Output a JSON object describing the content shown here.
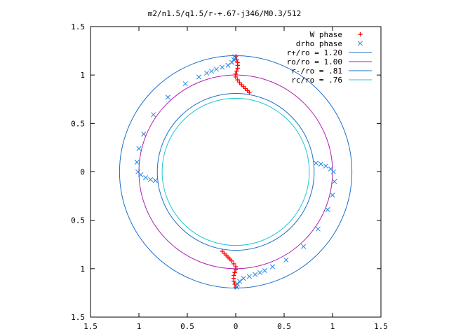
{
  "chart_data": {
    "type": "scatter",
    "title": "m2/n1.5/q1.5/r-+.67-j346/M0.3/512",
    "xlabel": "",
    "ylabel": "",
    "xlim": [
      -1.5,
      1.5
    ],
    "ylim": [
      -1.5,
      1.5
    ],
    "x_ticks": [
      -1.5,
      -1,
      -0.5,
      0,
      0.5,
      1,
      1.5
    ],
    "y_ticks": [
      -1.5,
      -1,
      -0.5,
      0,
      0.5,
      1,
      1.5
    ],
    "x_tick_labels": [
      "1.5",
      "1",
      "0.5",
      "0",
      "0.5",
      "1",
      "1.5"
    ],
    "y_tick_labels": [
      "1.5",
      "1",
      "0.5",
      "0",
      "0.5",
      "1",
      "1.5"
    ],
    "grid": false,
    "legend_position": "top-right",
    "circles": [
      {
        "name": "r+/ro = 1.20",
        "radius": 1.2,
        "color": "#1e6fc8"
      },
      {
        "name": "ro/ro = 1.00",
        "radius": 1.0,
        "color": "#b01fb0"
      },
      {
        "name": "r-/ro = .81",
        "radius": 0.81,
        "color": "#1e6fc8"
      },
      {
        "name": "rc/ro = .76",
        "radius": 0.76,
        "color": "#1ec8d0"
      }
    ],
    "series": [
      {
        "name": "W phase",
        "marker": "plus",
        "color": "#ff0000",
        "points": [
          [
            0.0,
            1.19
          ],
          [
            0.01,
            1.16
          ],
          [
            0.02,
            1.13
          ],
          [
            0.02,
            1.1
          ],
          [
            0.02,
            1.07
          ],
          [
            0.01,
            1.04
          ],
          [
            0.0,
            1.01
          ],
          [
            0.0,
            0.98
          ],
          [
            0.02,
            0.95
          ],
          [
            0.04,
            0.92
          ],
          [
            0.06,
            0.9
          ],
          [
            0.08,
            0.88
          ],
          [
            0.1,
            0.86
          ],
          [
            0.12,
            0.84
          ],
          [
            0.14,
            0.82
          ],
          [
            0.0,
            -1.19
          ],
          [
            -0.01,
            -1.16
          ],
          [
            -0.02,
            -1.13
          ],
          [
            -0.02,
            -1.1
          ],
          [
            -0.02,
            -1.07
          ],
          [
            -0.01,
            -1.04
          ],
          [
            0.0,
            -1.01
          ],
          [
            0.0,
            -0.98
          ],
          [
            -0.02,
            -0.95
          ],
          [
            -0.04,
            -0.92
          ],
          [
            -0.06,
            -0.9
          ],
          [
            -0.08,
            -0.88
          ],
          [
            -0.1,
            -0.86
          ],
          [
            -0.12,
            -0.84
          ],
          [
            -0.14,
            -0.82
          ]
        ]
      },
      {
        "name": "drho phase",
        "marker": "x",
        "color": "#1e88e5",
        "points": [
          [
            -0.01,
            1.19
          ],
          [
            -0.02,
            1.16
          ],
          [
            -0.04,
            1.13
          ],
          [
            -0.08,
            1.1
          ],
          [
            -0.14,
            1.08
          ],
          [
            -0.2,
            1.06
          ],
          [
            -0.25,
            1.04
          ],
          [
            -0.3,
            1.02
          ],
          [
            -0.38,
            0.98
          ],
          [
            -0.52,
            0.91
          ],
          [
            -0.7,
            0.77
          ],
          [
            -0.85,
            0.59
          ],
          [
            -0.95,
            0.39
          ],
          [
            -1.0,
            0.24
          ],
          [
            -1.02,
            0.1
          ],
          [
            -1.01,
            0.0
          ],
          [
            -0.98,
            -0.03
          ],
          [
            -0.93,
            -0.06
          ],
          [
            -0.88,
            -0.08
          ],
          [
            -0.83,
            -0.09
          ],
          [
            0.01,
            -1.19
          ],
          [
            0.02,
            -1.16
          ],
          [
            0.04,
            -1.13
          ],
          [
            0.08,
            -1.1
          ],
          [
            0.14,
            -1.08
          ],
          [
            0.2,
            -1.06
          ],
          [
            0.25,
            -1.04
          ],
          [
            0.3,
            -1.02
          ],
          [
            0.38,
            -0.98
          ],
          [
            0.52,
            -0.91
          ],
          [
            0.7,
            -0.77
          ],
          [
            0.85,
            -0.59
          ],
          [
            0.95,
            -0.39
          ],
          [
            1.0,
            -0.24
          ],
          [
            1.02,
            -0.1
          ],
          [
            1.01,
            0.0
          ],
          [
            0.98,
            0.03
          ],
          [
            0.93,
            0.06
          ],
          [
            0.88,
            0.08
          ],
          [
            0.83,
            0.09
          ]
        ]
      }
    ]
  }
}
